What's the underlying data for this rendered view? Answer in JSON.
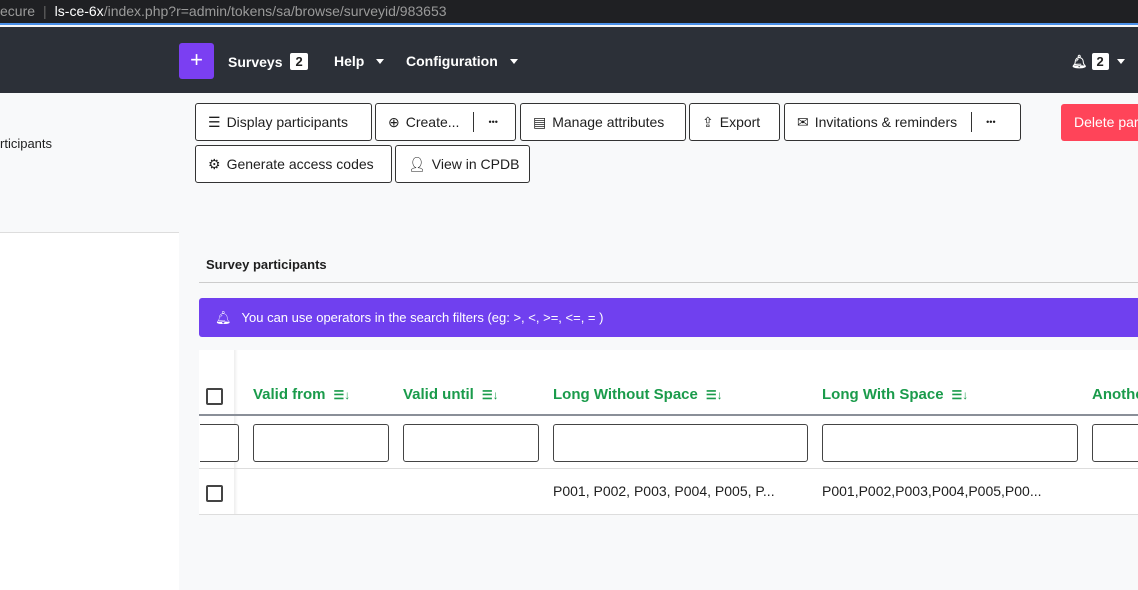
{
  "browser": {
    "prefix": "ecure",
    "host": "ls-ce-6x",
    "path": "/index.php?r=admin/tokens/sa/browse/surveyid/983653"
  },
  "nav": {
    "add_icon": "plus-icon",
    "surveys": "Surveys",
    "surveys_count": "2",
    "help": "Help",
    "configuration": "Configuration",
    "notifications_count": "2",
    "accent": "#7b3ff2"
  },
  "sidebar": {
    "item": "rticipants"
  },
  "toolbar": {
    "display": "Display participants",
    "create": "Create...",
    "more": "•••",
    "manage": "Manage attributes",
    "export": "Export",
    "invitations": "Invitations & reminders",
    "delete": "Delete participants",
    "generate": "Generate access codes",
    "cpdb": "View in CPDB"
  },
  "section": {
    "title": "Survey participants"
  },
  "alert": {
    "text": "You can use operators in the search filters (eg: >, <, >=, <=, = )",
    "color": "#7040ef"
  },
  "table": {
    "columns": [
      "Valid from",
      "Valid until",
      "Long Without Space",
      "Long With Space",
      "Another"
    ],
    "sort_icon": "☰↓",
    "rows": [
      {
        "valid_from": "",
        "valid_until": "",
        "long_without_space": "P001, P002, P003, P004, P005, P...",
        "long_with_space": "P001,P002,P003,P004,P005,P00..."
      }
    ]
  }
}
